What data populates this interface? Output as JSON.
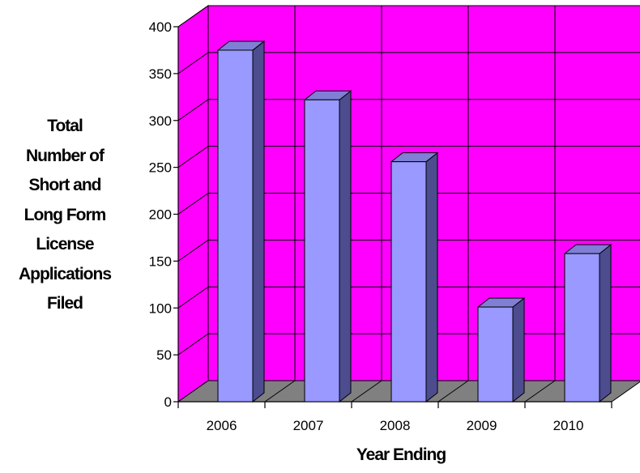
{
  "chart_data": {
    "type": "bar",
    "categories": [
      "2006",
      "2007",
      "2008",
      "2009",
      "2010"
    ],
    "values": [
      375,
      322,
      256,
      101,
      158
    ],
    "title": "",
    "xlabel": "Year Ending",
    "ylabel": "Total Number of Short and Long Form License Applications Filed",
    "ylabel_lines": [
      "Total",
      "Number of",
      "Short and",
      "Long Form",
      "License",
      "Applications",
      "Filed"
    ],
    "ylim": [
      0,
      400
    ],
    "yticks": [
      0,
      50,
      100,
      150,
      200,
      250,
      300,
      350,
      400
    ],
    "grid": true,
    "style": "3d-column",
    "colors": {
      "wall": "#ff00ff",
      "floor": "#808080",
      "bar_front": "#9999ff",
      "bar_top": "#7f7fd6",
      "bar_side": "#4c4c8f"
    }
  }
}
